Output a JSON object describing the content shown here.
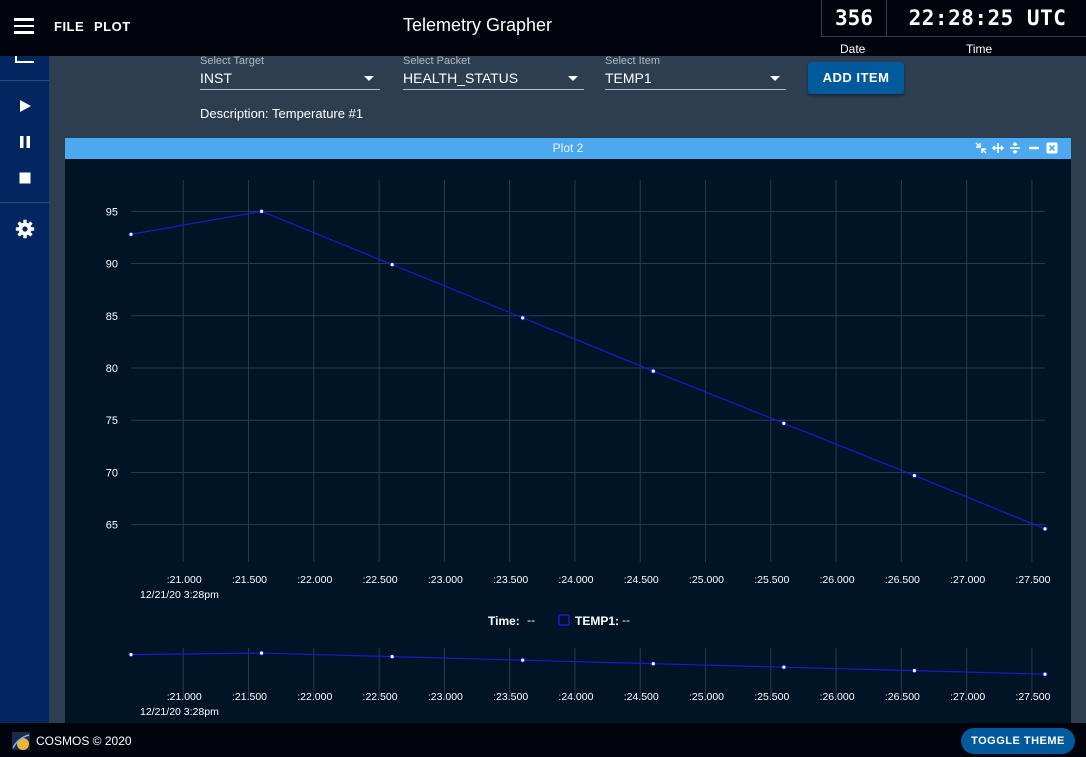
{
  "header": {
    "menu_file": "FILE",
    "menu_plot": "PLOT",
    "title": "Telemetry Grapher"
  },
  "clock": {
    "day": "356",
    "time": "22:28:25 UTC",
    "date_label": "Date",
    "time_label": "Time"
  },
  "selectors": {
    "target": {
      "label": "Select Target",
      "value": "INST"
    },
    "packet": {
      "label": "Select Packet",
      "value": "HEALTH_STATUS"
    },
    "item": {
      "label": "Select Item",
      "value": "TEMP1"
    },
    "add_label": "ADD ITEM"
  },
  "description": "Description: Temperature #1",
  "plot": {
    "title": "Plot 2",
    "legend_time_label": "Time:",
    "legend_time_value": "--",
    "legend_series_label": "TEMP1:",
    "legend_series_value": "--"
  },
  "colors": {
    "series": "#1a1ad0",
    "header_bar": "#4ca9f0",
    "button": "#005a9c"
  },
  "chart_data": {
    "type": "line",
    "series": [
      {
        "name": "TEMP1",
        "x": [
          20.6,
          21.6,
          22.6,
          23.6,
          24.6,
          25.6,
          26.6,
          27.6
        ],
        "values": [
          92.8,
          95.0,
          89.9,
          84.8,
          79.7,
          74.7,
          69.7,
          64.6
        ]
      }
    ],
    "x_tick_values": [
      21.0,
      21.5,
      22.0,
      22.5,
      23.0,
      23.5,
      24.0,
      24.5,
      25.0,
      25.5,
      26.0,
      26.5,
      27.0,
      27.5
    ],
    "x_tick_labels": [
      ":21.000",
      ":21.500",
      ":22.000",
      ":22.500",
      ":23.000",
      ":23.500",
      ":24.000",
      ":24.500",
      ":25.000",
      ":25.500",
      ":26.000",
      ":26.500",
      ":27.000",
      ":27.500"
    ],
    "x_date_label": "12/21/20 3:28pm",
    "y_tick_values": [
      65,
      70,
      75,
      80,
      85,
      90,
      95
    ],
    "y_tick_labels": [
      "65",
      "70",
      "75",
      "80",
      "85",
      "90",
      "95"
    ],
    "xlim": [
      20.6,
      27.6
    ],
    "ylim": [
      62,
      98
    ],
    "grid": true,
    "overview": true
  },
  "footer": {
    "copyright": "COSMOS © 2020",
    "toggle_label": "TOGGLE THEME"
  }
}
